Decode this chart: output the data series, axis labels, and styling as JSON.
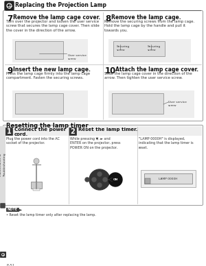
{
  "bg_color": "#ffffff",
  "header_title": "Replacing the Projection Lamp",
  "page_label": "E-51",
  "section_title": "Resetting the lamp timer",
  "steps": [
    {
      "number": "7",
      "title": "Remove the lamp cage cover.",
      "body": "Turn over the projector and loosen the user service\nscrew that secures the lamp cage cover. Then slide\nthe cover in the direction of the arrow.",
      "label": "User service\nscrew"
    },
    {
      "number": "8",
      "title": "Remove the lamp cage.",
      "body": "Remove the securing screws from the lamp cage.\nHold the lamp cage by the handle and pull it\ntowards you.",
      "label1": "Securing\nscrew",
      "label2": "Securing\nscrew"
    },
    {
      "number": "9",
      "title": "Insert the new lamp cage.",
      "body": "Press the lamp cage firmly into the lamp cage\ncompartment. Fasten the securing screws.",
      "label": ""
    },
    {
      "number": "10",
      "title": "Attach the lamp cage cover.",
      "body": "Slide the lamp cage cover in the direction of the\narrow. Then tighten the user service screw.",
      "label": "User service\nscrew"
    }
  ],
  "lower_steps": [
    {
      "number": "1",
      "title": "Connect the power\ncord.",
      "body": "Plug the power cord into the AC\nsocket of the projector."
    },
    {
      "number": "2",
      "title": "Reset the lamp timer.",
      "body1": "While pressing ▼, ► and\nENTER on the projector, press\nPOWER ON on the projector.",
      "body2": "\"LAMP 0000H\" is displayed,\nindicating that the lamp timer is\nreset."
    }
  ],
  "note_bold": "NOTE",
  "note_arrow": "►",
  "note_body": "• Reset the lamp timer only after replacing the lamp.",
  "sidebar_text": "Maintenance &\nTroubleshooting"
}
